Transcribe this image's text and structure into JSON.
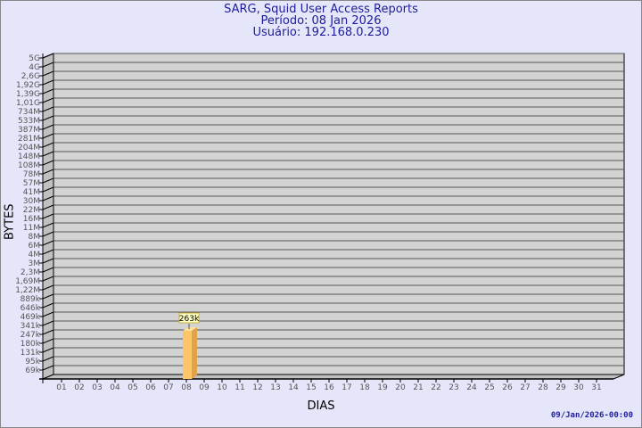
{
  "header": {
    "title": "SARG, Squid User Access Reports",
    "period": "Período: 08 Jan 2026",
    "user": "Usuário: 192.168.0.230"
  },
  "footer": {
    "timestamp": "09/Jan/2026-00:00"
  },
  "chart_data": {
    "type": "bar",
    "title": "SARG, Squid User Access Reports",
    "xlabel": "DIAS",
    "ylabel": "BYTES",
    "y_scale": "log",
    "grid": true,
    "y_ticks": [
      "5G",
      "4G",
      "2,6G",
      "1,92G",
      "1,39G",
      "1,01G",
      "734M",
      "533M",
      "387M",
      "281M",
      "204M",
      "148M",
      "108M",
      "78M",
      "57M",
      "41M",
      "30M",
      "22M",
      "16M",
      "11M",
      "8M",
      "6M",
      "4M",
      "3M",
      "2,3M",
      "1,69M",
      "1,22M",
      "889k",
      "646k",
      "469k",
      "341k",
      "247k",
      "180k",
      "131k",
      "95k",
      "69k"
    ],
    "y_tick_values": [
      5000000000,
      4000000000,
      2600000000,
      1920000000,
      1390000000,
      1010000000,
      734000000,
      533000000,
      387000000,
      281000000,
      204000000,
      148000000,
      108000000,
      78000000,
      57000000,
      41000000,
      30000000,
      22000000,
      16000000,
      11000000,
      8000000,
      6000000,
      4000000,
      3000000,
      2300000,
      1690000,
      1220000,
      889000,
      646000,
      469000,
      341000,
      247000,
      180000,
      131000,
      95000,
      69000
    ],
    "categories": [
      "01",
      "02",
      "03",
      "04",
      "05",
      "06",
      "07",
      "08",
      "09",
      "10",
      "11",
      "12",
      "13",
      "14",
      "15",
      "16",
      "17",
      "18",
      "19",
      "20",
      "21",
      "22",
      "23",
      "24",
      "25",
      "26",
      "27",
      "28",
      "29",
      "30",
      "31"
    ],
    "series": [
      {
        "values": [
          null,
          null,
          null,
          null,
          null,
          null,
          null,
          263000,
          null,
          null,
          null,
          null,
          null,
          null,
          null,
          null,
          null,
          null,
          null,
          null,
          null,
          null,
          null,
          null,
          null,
          null,
          null,
          null,
          null,
          null,
          null
        ]
      }
    ],
    "data_labels": {
      "08": "263k"
    },
    "colors": {
      "bar_front": "#fdc468",
      "bar_side": "#e0a24a",
      "bar_top": "#ffe09a",
      "plot_bg": "#d3d3d3",
      "side_bg": "#c0c0c0",
      "page_bg": "#e6e6fa",
      "label_box": "#ffffc0"
    }
  }
}
